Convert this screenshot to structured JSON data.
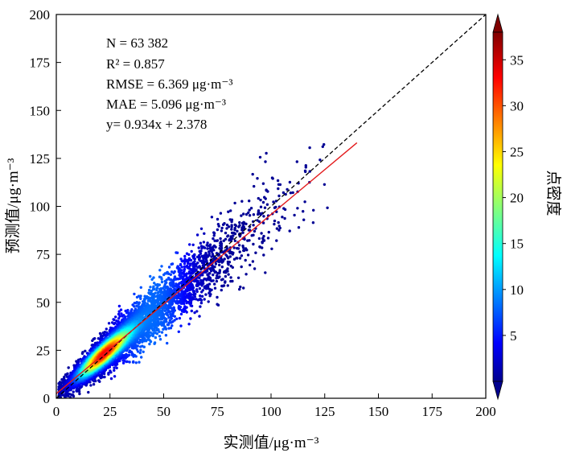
{
  "chart_data": {
    "type": "scatter",
    "subtype": "density-scatter",
    "xlabel": "实测值/μg·m⁻³",
    "ylabel": "预测值/μg·m⁻³",
    "xlim": [
      0,
      200
    ],
    "ylim": [
      0,
      200
    ],
    "xticks": [
      "0",
      "25",
      "50",
      "75",
      "100",
      "125",
      "150",
      "175",
      "200"
    ],
    "yticks": [
      "0",
      "25",
      "50",
      "75",
      "100",
      "125",
      "150",
      "175",
      "200"
    ],
    "grid": false,
    "annotations": [
      "N = 63 382",
      "R² = 0.857",
      "RMSE = 6.369 μg·m⁻³",
      "MAE = 5.096 μg·m⁻³",
      "y= 0.934x + 2.378"
    ],
    "stats": {
      "N": 63382,
      "R2": 0.857,
      "RMSE": 6.369,
      "MAE": 5.096,
      "slope": 0.934,
      "intercept": 2.378
    },
    "reference_line": {
      "type": "1:1",
      "style": "dashed",
      "color": "#000000",
      "from": [
        0,
        0
      ],
      "to": [
        200,
        200
      ]
    },
    "fit_line": {
      "color": "#e31a1c",
      "slope": 0.934,
      "intercept": 2.378,
      "x_range": [
        0,
        140
      ]
    },
    "colorbar": {
      "label": "点密度",
      "ticks": [
        "5",
        "10",
        "15",
        "20",
        "25",
        "30",
        "35"
      ],
      "range": [
        0,
        38
      ],
      "colormap": "jet",
      "extend": "both"
    },
    "colors": {
      "point_low": "#00008f",
      "point_high": "#ff1a00",
      "fit": "#e31a1c"
    }
  }
}
